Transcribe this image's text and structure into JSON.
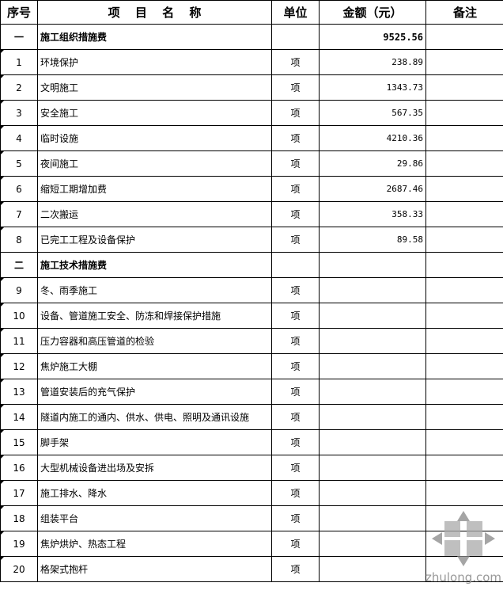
{
  "headers": [
    "序号",
    "项 目 名 称",
    "单位",
    "金额（元）",
    "备注"
  ],
  "rows": [
    {
      "seq": "一",
      "name": "施工组织措施费",
      "unit": "",
      "amount": "9525.56",
      "note": "",
      "section": true
    },
    {
      "seq": "1",
      "name": "环境保护",
      "unit": "项",
      "amount": "238.89",
      "note": ""
    },
    {
      "seq": "2",
      "name": "文明施工",
      "unit": "项",
      "amount": "1343.73",
      "note": ""
    },
    {
      "seq": "3",
      "name": "安全施工",
      "unit": "项",
      "amount": "567.35",
      "note": ""
    },
    {
      "seq": "4",
      "name": "临时设施",
      "unit": "项",
      "amount": "4210.36",
      "note": ""
    },
    {
      "seq": "5",
      "name": "夜间施工",
      "unit": "项",
      "amount": "29.86",
      "note": ""
    },
    {
      "seq": "6",
      "name": "缩短工期增加费",
      "unit": "项",
      "amount": "2687.46",
      "note": ""
    },
    {
      "seq": "7",
      "name": "二次搬运",
      "unit": "项",
      "amount": "358.33",
      "note": ""
    },
    {
      "seq": "8",
      "name": "已完工工程及设备保护",
      "unit": "项",
      "amount": "89.58",
      "note": ""
    },
    {
      "seq": "二",
      "name": "施工技术措施费",
      "unit": "",
      "amount": "",
      "note": "",
      "section": true
    },
    {
      "seq": "9",
      "name": "冬、雨季施工",
      "unit": "项",
      "amount": "",
      "note": ""
    },
    {
      "seq": "10",
      "name": "设备、管道施工安全、防冻和焊接保护措施",
      "unit": "项",
      "amount": "",
      "note": ""
    },
    {
      "seq": "11",
      "name": "压力容器和高压管道的检验",
      "unit": "项",
      "amount": "",
      "note": ""
    },
    {
      "seq": "12",
      "name": "焦炉施工大棚",
      "unit": "项",
      "amount": "",
      "note": ""
    },
    {
      "seq": "13",
      "name": "管道安装后的充气保护",
      "unit": "项",
      "amount": "",
      "note": ""
    },
    {
      "seq": "14",
      "name": "隧道内施工的通内、供水、供电、照明及通讯设施",
      "unit": "项",
      "amount": "",
      "note": ""
    },
    {
      "seq": "15",
      "name": "脚手架",
      "unit": "项",
      "amount": "",
      "note": ""
    },
    {
      "seq": "16",
      "name": "大型机械设备进出场及安拆",
      "unit": "项",
      "amount": "",
      "note": ""
    },
    {
      "seq": "17",
      "name": "施工排水、降水",
      "unit": "项",
      "amount": "",
      "note": ""
    },
    {
      "seq": "18",
      "name": "组装平台",
      "unit": "项",
      "amount": "",
      "note": ""
    },
    {
      "seq": "19",
      "name": "焦炉烘炉、热态工程",
      "unit": "项",
      "amount": "",
      "note": ""
    },
    {
      "seq": "20",
      "name": "格架式抱杆",
      "unit": "项",
      "amount": "",
      "note": ""
    }
  ],
  "watermark": {
    "text": "zhulong.com",
    "color": "#999999"
  }
}
